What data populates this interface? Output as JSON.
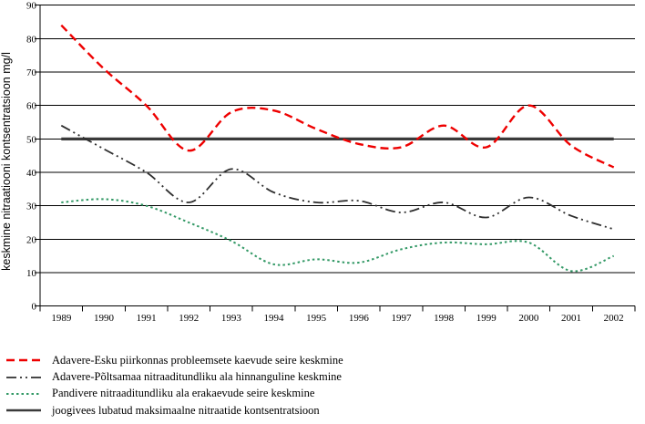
{
  "chart_data": {
    "type": "line",
    "title": "",
    "xlabel": "",
    "ylabel": "keskmine nitraatiooni kontsentratsioon mg/l",
    "x": [
      1989,
      1990,
      1991,
      1992,
      1993,
      1994,
      1995,
      1996,
      1997,
      1998,
      1999,
      2000,
      2001,
      2002
    ],
    "ylim": [
      0,
      90
    ],
    "yticks": [
      0,
      10,
      20,
      30,
      40,
      50,
      60,
      70,
      80,
      90
    ],
    "grid": true,
    "legend_position": "bottom-left",
    "series": [
      {
        "id": "adavere-esku",
        "name": "Adavere-Esku piirkonnas probleemsete kaevude seire keskmine",
        "color": "#ee0000",
        "style": "dashed",
        "values": [
          84,
          71,
          60,
          46.5,
          58,
          58.5,
          53,
          48.5,
          47.5,
          54,
          47.5,
          60,
          48,
          41.5
        ]
      },
      {
        "id": "adavere-poltsamaa",
        "name": "Adavere-Põltsamaa nitraaditundliku ala hinnanguline keskmine",
        "color": "#2e2e2e",
        "style": "dash-dot-dot",
        "values": [
          54,
          47,
          40,
          31,
          41,
          34,
          31,
          31.5,
          28,
          31,
          26.5,
          32.5,
          27,
          23
        ]
      },
      {
        "id": "pandivere",
        "name": "Pandivere nitraaditundliku ala erakaevude seire keskmine",
        "color": "#339966",
        "style": "dotted",
        "values": [
          31,
          32,
          30,
          25,
          19.5,
          12.5,
          14,
          13,
          17,
          19,
          18.5,
          19,
          10.5,
          15
        ]
      },
      {
        "id": "joogivee-limiit",
        "name": "joogivees lubatud maksimaalne nitraatide kontsentratsioon",
        "color": "#3a3a3a",
        "style": "solid",
        "values": [
          50,
          50,
          50,
          50,
          50,
          50,
          50,
          50,
          50,
          50,
          50,
          50,
          50,
          50
        ]
      }
    ]
  }
}
